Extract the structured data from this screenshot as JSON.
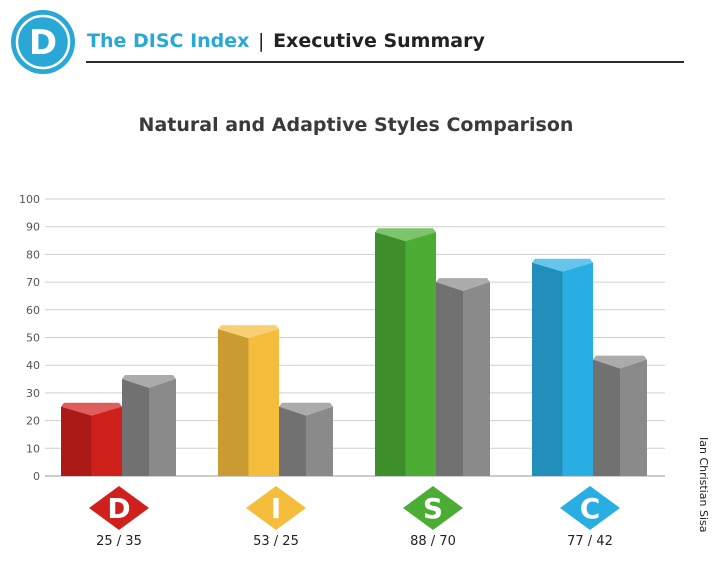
{
  "header": {
    "logo_letter": "D",
    "brand": "The DISC Index",
    "separator": "|",
    "section": "Executive Summary"
  },
  "colors": {
    "accent": "#29a7d6",
    "grey": "#8a8a8a",
    "D": "#d0201c",
    "I": "#f5bd3c",
    "S": "#4bad34",
    "C": "#29aee3"
  },
  "credit": "Ian Christian Sisa",
  "chart_data": {
    "type": "bar",
    "title": "Natural and Adaptive Styles Comparison",
    "xlabel": "",
    "ylabel": "",
    "ylim": [
      0,
      100
    ],
    "yticks": [
      0,
      10,
      20,
      30,
      40,
      50,
      60,
      70,
      80,
      90,
      100
    ],
    "grid": true,
    "categories": [
      "D",
      "I",
      "S",
      "C"
    ],
    "category_colors": [
      "#d0201c",
      "#f5bd3c",
      "#4bad34",
      "#29aee3"
    ],
    "series": [
      {
        "values": [
          25,
          53,
          88,
          77
        ]
      },
      {
        "values": [
          35,
          25,
          70,
          42
        ]
      }
    ],
    "pair_labels": [
      "25 / 35",
      "53 / 25",
      "88 / 70",
      "77 / 42"
    ]
  }
}
